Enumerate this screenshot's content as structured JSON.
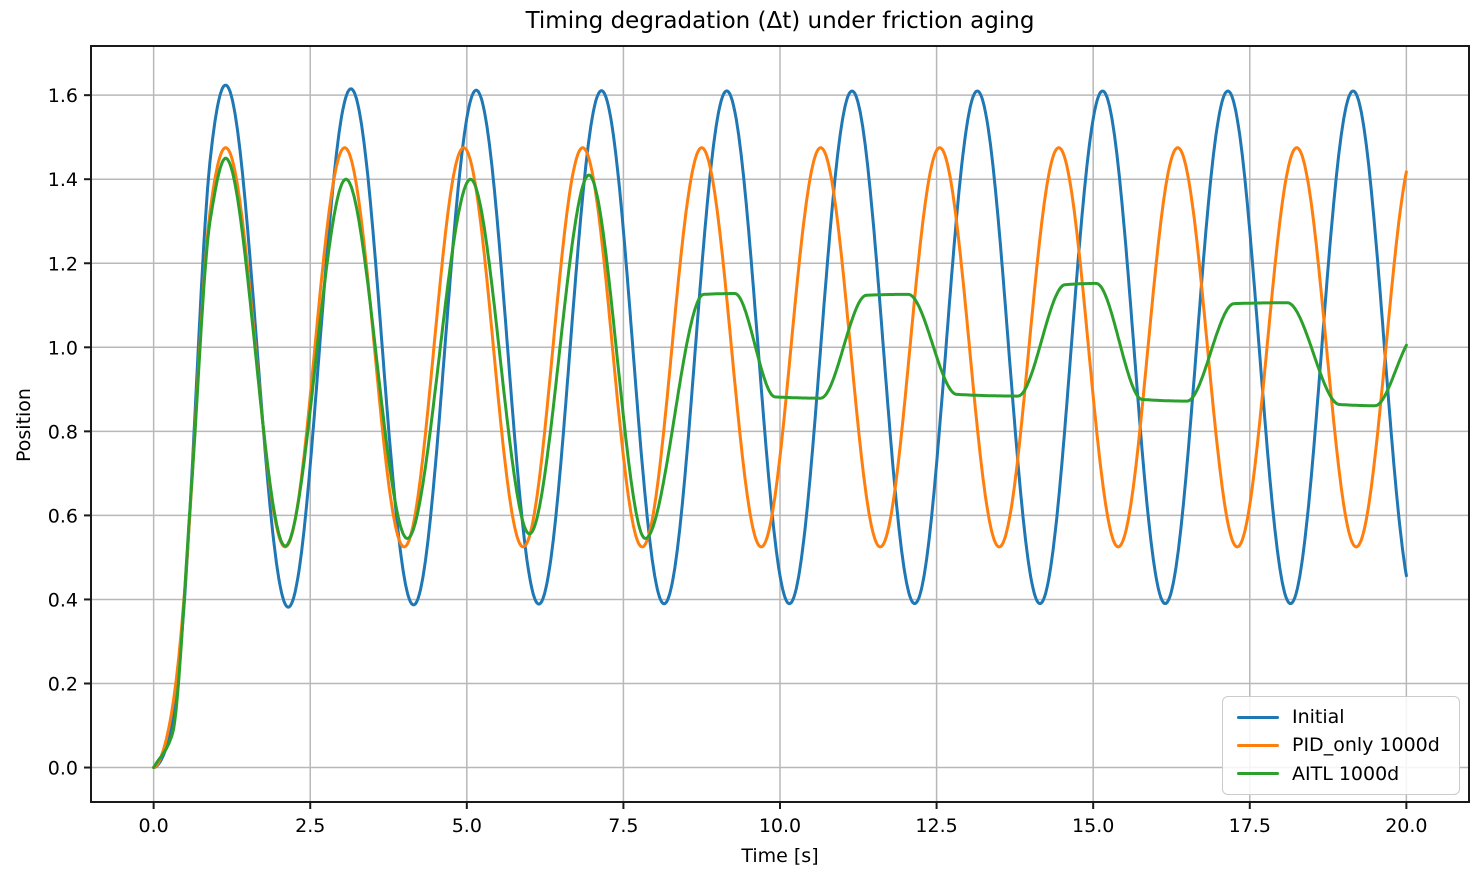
{
  "title": "Timing degradation (Δt) under friction aging",
  "axes": {
    "xlabel": "Time [s]",
    "ylabel": "Position",
    "xlim": [
      -1.0,
      21.0
    ],
    "ylim": [
      -0.082,
      1.717
    ],
    "x_ticks": [
      0.0,
      2.5,
      5.0,
      7.5,
      10.0,
      12.5,
      15.0,
      17.5,
      20.0
    ],
    "x_tick_labels": [
      "0.0",
      "2.5",
      "5.0",
      "7.5",
      "10.0",
      "12.5",
      "15.0",
      "17.5",
      "20.0"
    ],
    "y_ticks": [
      0.0,
      0.2,
      0.4,
      0.6,
      0.8,
      1.0,
      1.2,
      1.4,
      1.6
    ],
    "y_tick_labels": [
      "0.0",
      "0.2",
      "0.4",
      "0.6",
      "0.8",
      "1.0",
      "1.2",
      "1.4",
      "1.6"
    ],
    "grid": true,
    "grid_color": "#b8b8b8",
    "spine_color": "#1a1a1a",
    "text_color": "#000000"
  },
  "legend": {
    "position": "lower right",
    "border_color": "#cbcbcb"
  },
  "chart_data": {
    "type": "line",
    "title": "Timing degradation (Δt) under friction aging",
    "xlabel": "Time [s]",
    "ylabel": "Position",
    "xlim": [
      -1.0,
      21.0
    ],
    "ylim": [
      -0.082,
      1.717
    ],
    "x_range_s": [
      0,
      20
    ],
    "sample_step_s": 0.02,
    "grid": true,
    "legend_position": "lower right",
    "series": [
      {
        "name": "Initial",
        "color": "#1f77b4",
        "line_width": 3,
        "model": {
          "kind": "ramped_cosine",
          "center": 1.0,
          "amplitude_base": 0.61,
          "amplitude_extra": 0.025,
          "amplitude_decay_tau": 2.0,
          "period": 2.0,
          "phase_ref": 0.15,
          "rise_time": 0.9
        },
        "key_values": {
          "start": [
            0.0,
            0.0
          ],
          "first_peak": [
            1.15,
            1.63
          ],
          "steady_peak_y": 1.61,
          "steady_trough_y": 0.39,
          "period_s": 2.0,
          "end": [
            20.0,
            0.45
          ]
        }
      },
      {
        "name": "PID_only 1000d",
        "color": "#ff7f0e",
        "line_width": 3,
        "model": {
          "kind": "ramped_cosine",
          "center": 1.0,
          "amplitude_base": 0.475,
          "amplitude_extra": 0.0,
          "amplitude_decay_tau": 1.0,
          "period": 1.9,
          "phase_ref": 0.2,
          "rise_time": 0.9
        },
        "key_values": {
          "start": [
            0.0,
            0.0
          ],
          "first_peak": [
            1.15,
            1.475
          ],
          "steady_peak_y": 1.475,
          "steady_trough_y": 0.525,
          "period_s": 1.9,
          "end": [
            20.0,
            1.42
          ]
        }
      },
      {
        "name": "AITL 1000d",
        "color": "#2ca02c",
        "line_width": 3,
        "model": {
          "kind": "pchip_points",
          "points": [
            [
              0.0,
              0.0
            ],
            [
              0.3,
              0.08
            ],
            [
              0.6,
              0.66
            ],
            [
              0.9,
              1.3
            ],
            [
              1.15,
              1.45
            ],
            [
              2.1,
              0.527
            ],
            [
              3.07,
              1.4
            ],
            [
              4.05,
              0.545
            ],
            [
              5.06,
              1.4
            ],
            [
              6.0,
              0.556
            ],
            [
              6.95,
              1.41
            ],
            [
              7.85,
              0.545
            ],
            [
              8.78,
              1.126
            ],
            [
              9.28,
              1.128
            ],
            [
              9.92,
              0.882
            ],
            [
              10.65,
              0.879
            ],
            [
              11.38,
              1.124
            ],
            [
              12.05,
              1.126
            ],
            [
              12.82,
              0.888
            ],
            [
              13.8,
              0.884
            ],
            [
              14.55,
              1.149
            ],
            [
              15.05,
              1.152
            ],
            [
              15.78,
              0.876
            ],
            [
              16.5,
              0.872
            ],
            [
              17.25,
              1.104
            ],
            [
              18.1,
              1.106
            ],
            [
              18.93,
              0.864
            ],
            [
              19.5,
              0.861
            ],
            [
              20.0,
              1.005
            ]
          ]
        },
        "key_values": {
          "start": [
            0.0,
            0.0
          ],
          "early_peaks_y": [
            1.45,
            1.4,
            1.4,
            1.41
          ],
          "early_troughs_y": [
            0.527,
            0.545,
            0.556,
            0.545
          ],
          "late_plateau_high_y": [
            1.13,
            1.13,
            1.15,
            1.11
          ],
          "late_plateau_low_y": [
            0.88,
            0.885,
            0.873,
            0.862
          ],
          "end": [
            20.0,
            1.005
          ]
        }
      }
    ]
  }
}
